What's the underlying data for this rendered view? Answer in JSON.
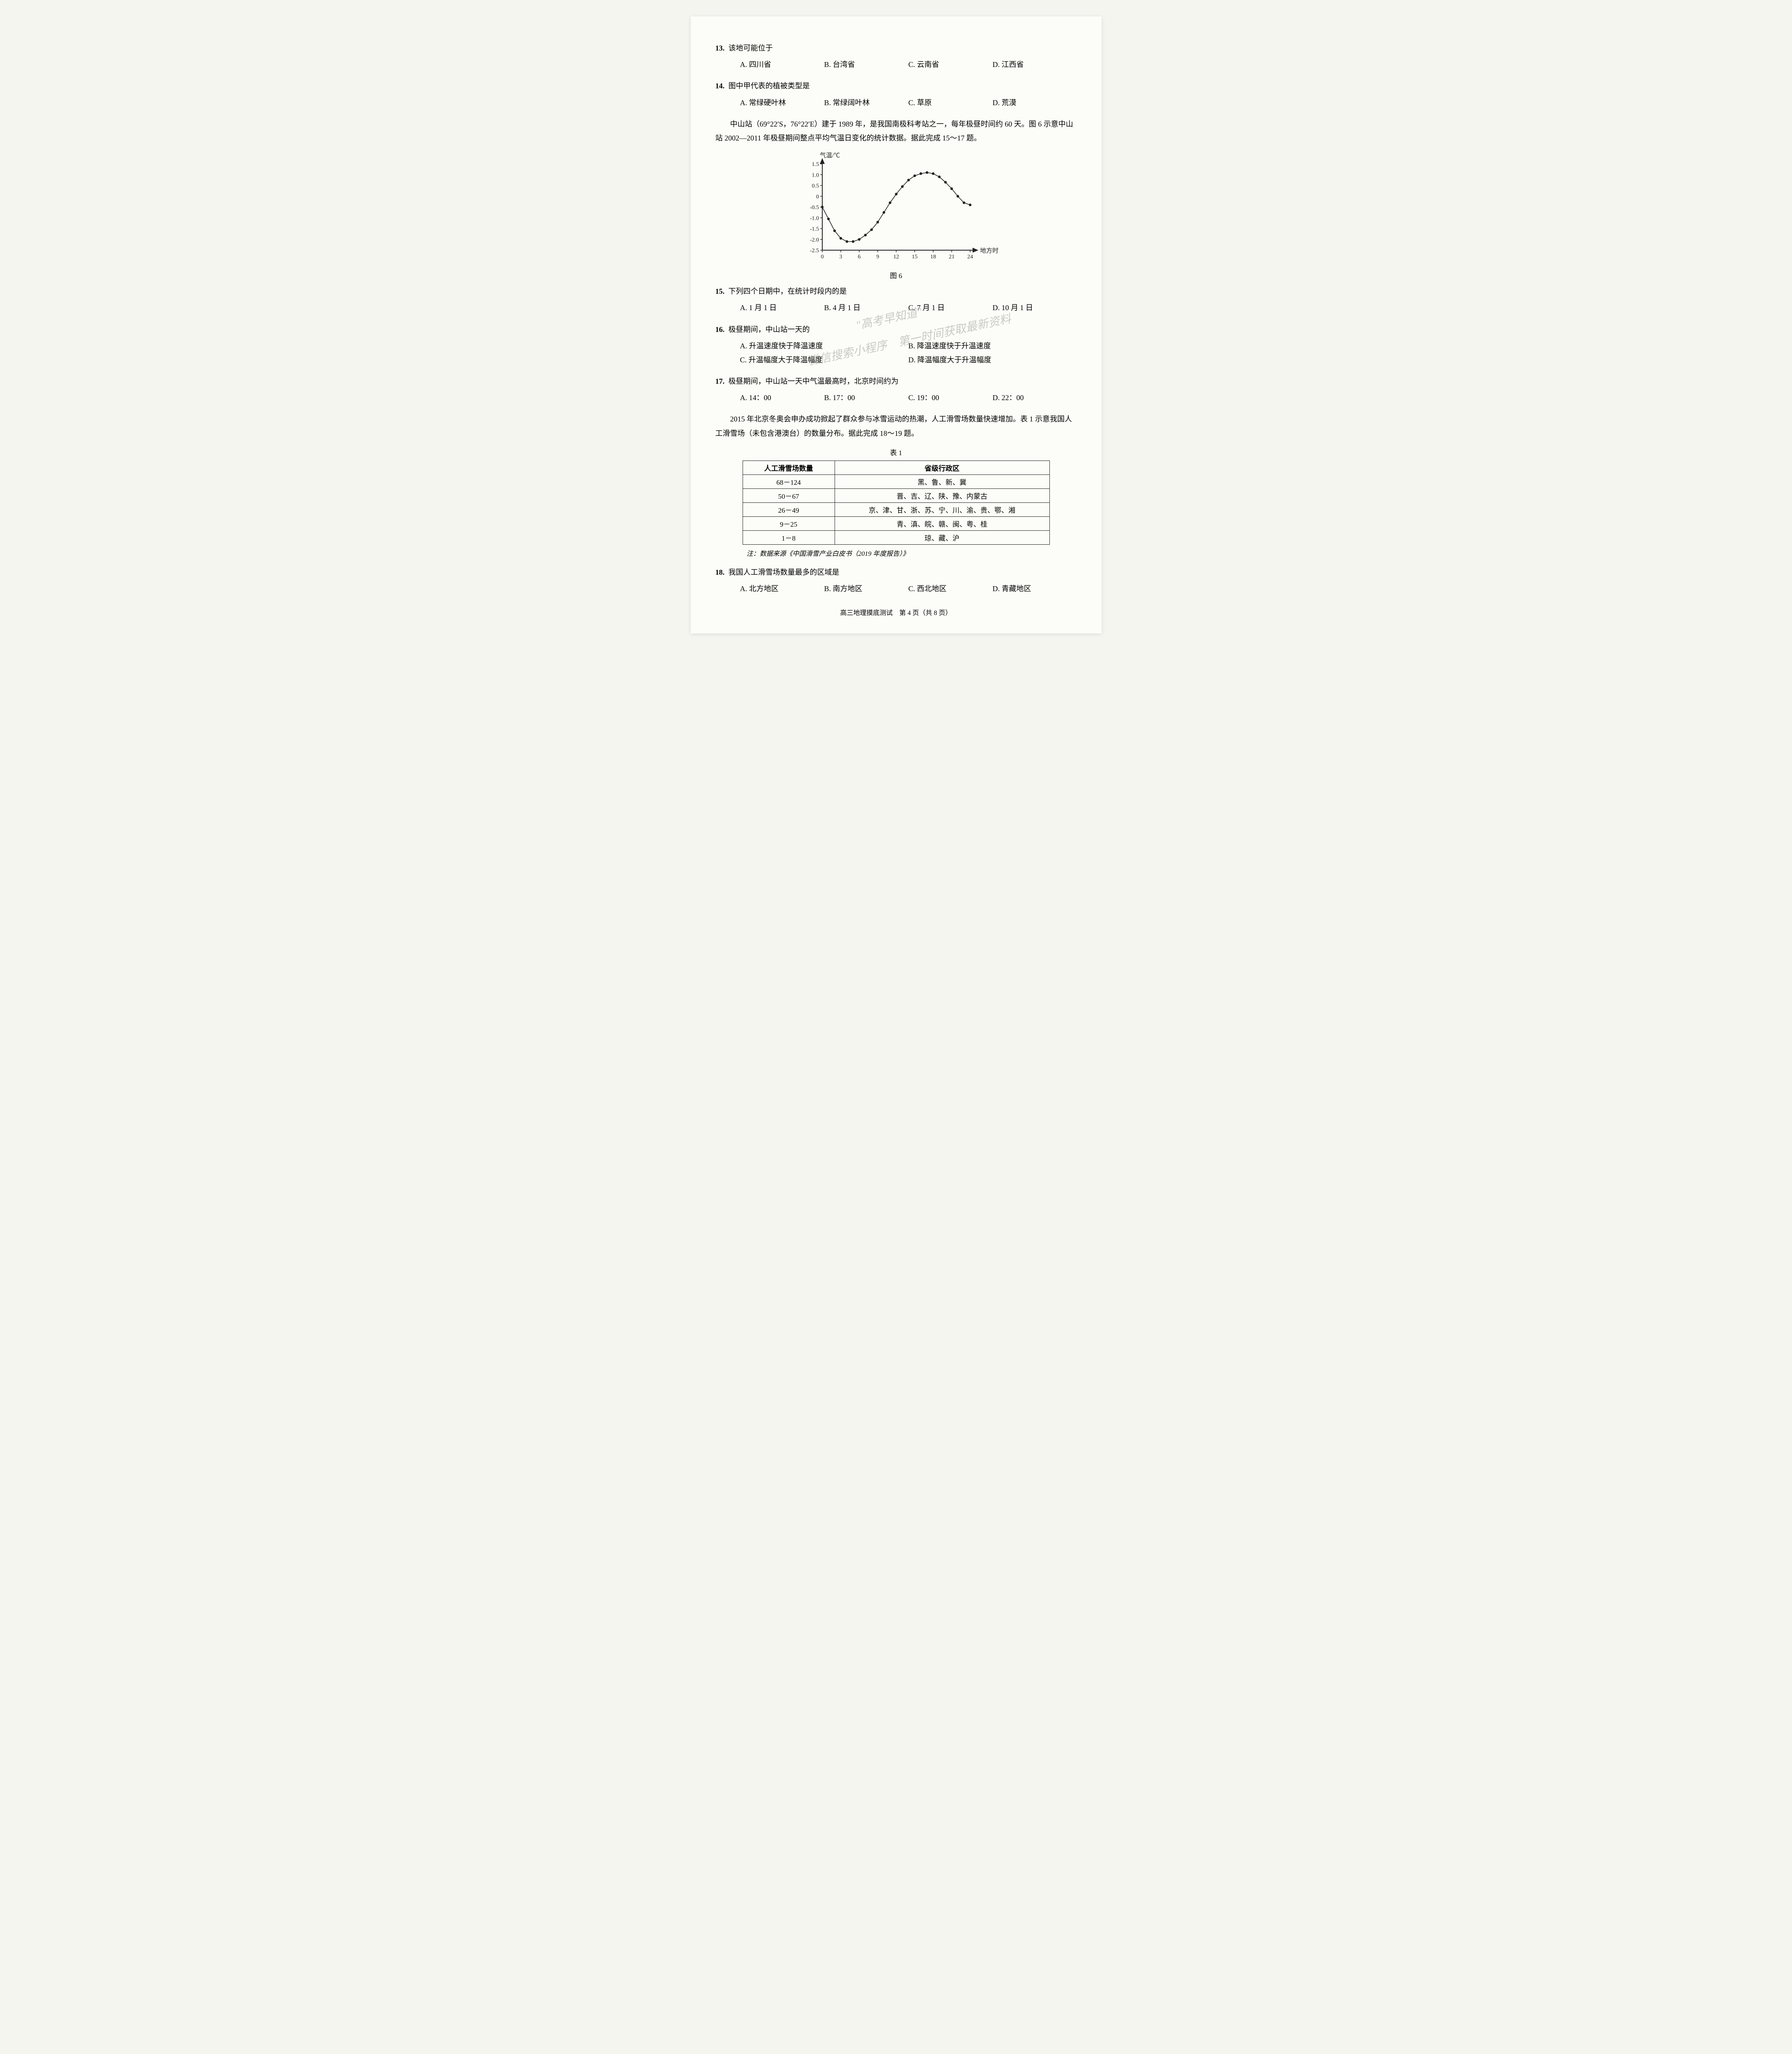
{
  "questions": {
    "q13": {
      "num": "13.",
      "stem": "该地可能位于",
      "opts": [
        "A. 四川省",
        "B. 台湾省",
        "C. 云南省",
        "D. 江西省"
      ]
    },
    "q14": {
      "num": "14.",
      "stem": "图中甲代表的植被类型是",
      "opts": [
        "A. 常绿硬叶林",
        "B. 常绿阔叶林",
        "C. 草原",
        "D. 荒漠"
      ]
    },
    "q15": {
      "num": "15.",
      "stem": "下列四个日期中，在统计时段内的是",
      "opts": [
        "A. 1 月 1 日",
        "B. 4 月 1 日",
        "C. 7 月 1 日",
        "D. 10 月 1 日"
      ]
    },
    "q16": {
      "num": "16.",
      "stem": "极昼期间，中山站一天的",
      "opts": [
        "A. 升温速度快于降温速度",
        "B. 降温速度快于升温速度",
        "C. 升温幅度大于降温幅度",
        "D. 降温幅度大于升温幅度"
      ]
    },
    "q17": {
      "num": "17.",
      "stem": "极昼期间，中山站一天中气温最高时，北京时间约为",
      "opts": [
        "A. 14：00",
        "B. 17：00",
        "C. 19：00",
        "D. 22：00"
      ]
    },
    "q18": {
      "num": "18.",
      "stem": "我国人工滑雪场数量最多的区域是",
      "opts": [
        "A. 北方地区",
        "B. 南方地区",
        "C. 西北地区",
        "D. 青藏地区"
      ]
    }
  },
  "passage1": "中山站（69°22′S，76°22′E）建于 1989 年，是我国南极科考站之一，每年极昼时间约 60 天。图 6 示意中山站 2002—2011 年极昼期间整点平均气温日变化的统计数据。据此完成 15～17 题。",
  "passage2": "2015 年北京冬奥会申办成功掀起了群众参与冰雪运动的热潮，人工滑雪场数量快速增加。表 1 示意我国人工滑雪场（未包含港澳台）的数量分布。据此完成 18～19 题。",
  "chart": {
    "type": "line",
    "caption": "图 6",
    "y_label": "气温/℃",
    "x_label": "地方时",
    "xlim": [
      0,
      24
    ],
    "ylim": [
      -2.5,
      1.5
    ],
    "x_ticks": [
      0,
      3,
      6,
      9,
      12,
      15,
      18,
      21,
      24
    ],
    "y_ticks": [
      -2.5,
      -2.0,
      -1.5,
      -1.0,
      -0.5,
      0,
      0.5,
      1.0,
      1.5
    ],
    "y_tick_labels": [
      "-2.5",
      "-2.0",
      "-1.5",
      "-1.0",
      "-0.5",
      "0",
      "0.5",
      "1.0",
      "1.5"
    ],
    "data": [
      [
        0,
        -0.5
      ],
      [
        1,
        -1.05
      ],
      [
        2,
        -1.6
      ],
      [
        3,
        -1.95
      ],
      [
        4,
        -2.1
      ],
      [
        5,
        -2.1
      ],
      [
        6,
        -2.0
      ],
      [
        7,
        -1.8
      ],
      [
        8,
        -1.55
      ],
      [
        9,
        -1.2
      ],
      [
        10,
        -0.75
      ],
      [
        11,
        -0.3
      ],
      [
        12,
        0.1
      ],
      [
        13,
        0.45
      ],
      [
        14,
        0.75
      ],
      [
        15,
        0.95
      ],
      [
        16,
        1.05
      ],
      [
        17,
        1.1
      ],
      [
        18,
        1.05
      ],
      [
        19,
        0.9
      ],
      [
        20,
        0.65
      ],
      [
        21,
        0.35
      ],
      [
        22,
        0.0
      ],
      [
        23,
        -0.3
      ],
      [
        24,
        -0.4
      ]
    ],
    "line_color": "#222222",
    "marker_color": "#222222",
    "marker_size": 3.2,
    "line_width": 1.6,
    "axis_color": "#222222",
    "axis_width": 2,
    "background_color": "#fcfcf8",
    "font_size": 14
  },
  "table": {
    "caption": "表 1",
    "header": [
      "人工滑雪场数量",
      "省级行政区"
    ],
    "rows": [
      [
        "68－124",
        "黑、鲁、新、冀"
      ],
      [
        "50－67",
        "晋、吉、辽、陕、豫、内蒙古"
      ],
      [
        "26－49",
        "京、津、甘、浙、苏、宁、川、渝、贵、鄂、湘"
      ],
      [
        "9－25",
        "青、滇、皖、赣、闽、粤、桂"
      ],
      [
        "1－8",
        "琼、藏、沪"
      ]
    ],
    "note": "注：数据来源《中国滑雪产业白皮书（2019 年度报告）》",
    "col_widths": [
      "30%",
      "70%"
    ]
  },
  "footer": "高三地理摸底测试　第 4 页（共 8 页）",
  "watermark": {
    "line1": "\"高考早知道\"",
    "line2": "微信搜索小程序　第一时间获取最新资料"
  }
}
